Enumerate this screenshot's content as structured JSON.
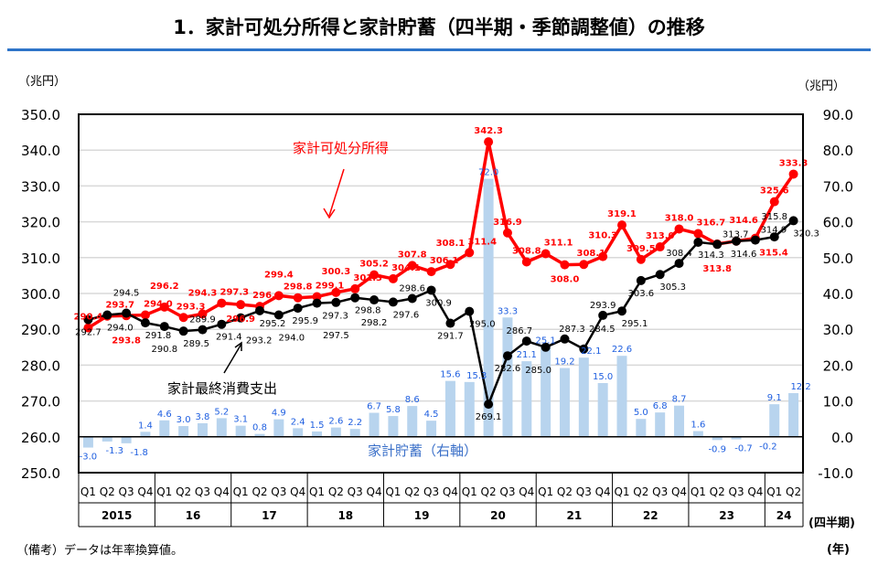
{
  "title": "1．家計可処分所得と家計貯蓄（四半期・季節調整値）の推移",
  "note": "（備考）データは年率換算値。",
  "chart_data": {
    "type": "bar+line",
    "left_unit": "（兆円）",
    "right_unit": "（兆円）",
    "x_unit_quarter": "(四半期)",
    "x_unit_year": "(年)",
    "ylim_left": [
      250,
      350
    ],
    "ylim_right": [
      -10,
      90
    ],
    "ytick_step_left": 10,
    "ytick_step_right": 10,
    "grid": true,
    "quarters": [
      "Q1",
      "Q2",
      "Q3",
      "Q4"
    ],
    "years": [
      "2015",
      "16",
      "17",
      "18",
      "19",
      "20",
      "21",
      "22",
      "23",
      "24"
    ],
    "colors": {
      "income": "#ff0000",
      "consumption": "#000000",
      "savings": "#b8d4ee",
      "savings_label": "#1f5fe0"
    },
    "annotations": {
      "income": "家計可処分所得",
      "consumption": "家計最終消費支出",
      "savings": "家計貯蓄（右軸）"
    },
    "series": [
      {
        "name": "家計可処分所得",
        "axis": "left",
        "type": "line",
        "values": [
          290.4,
          293.7,
          293.8,
          294.0,
          296.2,
          293.3,
          294.3,
          297.3,
          296.9,
          296.4,
          299.4,
          298.8,
          299.1,
          300.3,
          301.3,
          305.2,
          304.1,
          307.8,
          306.1,
          308.1,
          311.4,
          342.3,
          316.9,
          308.8,
          311.1,
          308.0,
          308.1,
          310.3,
          319.1,
          309.5,
          313.0,
          318.0,
          316.7,
          313.8,
          314.6,
          315.4,
          325.6,
          333.3
        ]
      },
      {
        "name": "家計最終消費支出",
        "axis": "left",
        "type": "line",
        "values": [
          292.7,
          294.0,
          294.5,
          291.8,
          290.8,
          289.5,
          289.9,
          291.4,
          293.2,
          295.2,
          294.0,
          295.9,
          297.3,
          297.5,
          298.8,
          298.2,
          297.6,
          298.6,
          300.9,
          291.7,
          295.0,
          269.1,
          282.6,
          286.7,
          285.0,
          287.3,
          284.5,
          293.9,
          295.1,
          303.6,
          305.3,
          308.4,
          314.3,
          313.7,
          314.6,
          314.9,
          315.8,
          320.3
        ]
      },
      {
        "name": "家計貯蓄（右軸）",
        "axis": "right",
        "type": "bar",
        "values": [
          -3.0,
          -1.3,
          -1.8,
          1.4,
          4.6,
          3.0,
          3.8,
          5.2,
          3.1,
          0.8,
          4.9,
          2.4,
          1.5,
          2.6,
          2.2,
          6.7,
          5.8,
          8.6,
          4.5,
          15.6,
          15.3,
          72.0,
          33.3,
          21.1,
          25.1,
          19.2,
          22.1,
          15.0,
          22.6,
          5.0,
          6.8,
          8.7,
          1.6,
          -0.9,
          -0.7,
          -0.2,
          9.1,
          12.2
        ]
      }
    ]
  }
}
